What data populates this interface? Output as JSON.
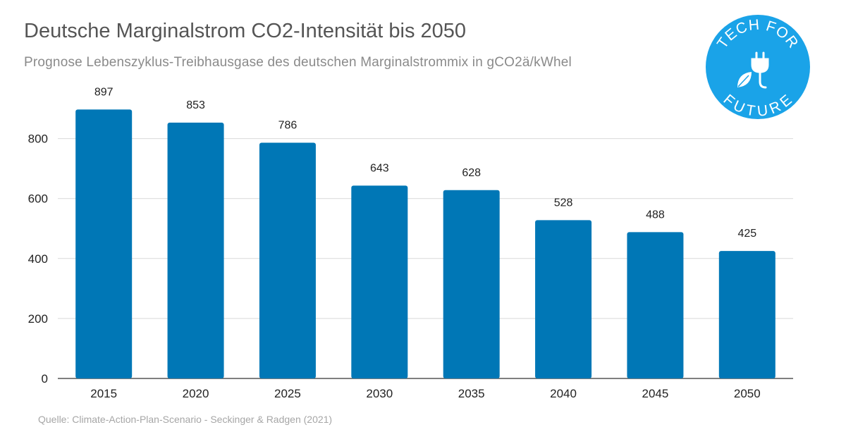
{
  "title": "Deutsche Marginalstrom CO2-Intensität bis 2050",
  "subtitle": "Prognose Lebenszyklus-Treibhausgase des deutschen Marginalstrommix in gCO2ä/kWhel",
  "source": "Quelle: Climate-Action-Plan-Scenario - Seckinger & Radgen (2021)",
  "logo": {
    "text_top": "TECH FOR",
    "text_bottom": "FUTURE",
    "icons": [
      "plug-icon",
      "leaf-icon"
    ],
    "color": "#1aa3e8"
  },
  "colors": {
    "bar": "#0077b6",
    "grid": "#d9d9d9",
    "axis": "#555555"
  },
  "chart_data": {
    "type": "bar",
    "categories": [
      "2015",
      "2020",
      "2025",
      "2030",
      "2035",
      "2040",
      "2045",
      "2050"
    ],
    "values": [
      897,
      853,
      786,
      643,
      628,
      528,
      488,
      425
    ],
    "data_labels": [
      "897",
      "853",
      "786",
      "643",
      "628",
      "528",
      "488",
      "425"
    ],
    "ylim": [
      0,
      1000
    ],
    "yticks": [
      0,
      200,
      400,
      600,
      800
    ],
    "xlabel": "",
    "ylabel": "",
    "grid": true,
    "legend": "none"
  }
}
